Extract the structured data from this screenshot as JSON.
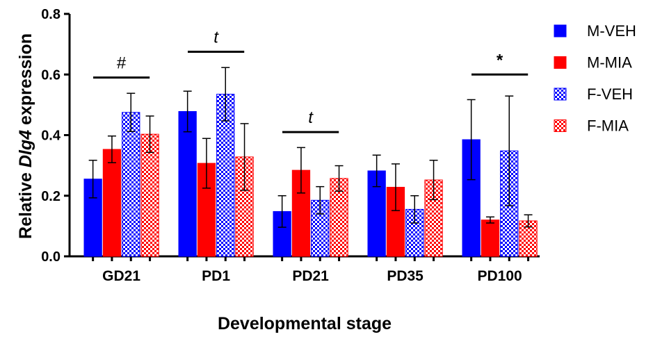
{
  "chart_data": {
    "type": "bar",
    "xlabel": "Developmental stage",
    "ylabel_prefix": "Relative ",
    "ylabel_gene": "Dlg4",
    "ylabel_suffix": " expression",
    "ylim": [
      0,
      0.8
    ],
    "yticks": [
      "0.0",
      "0.2",
      "0.4",
      "0.6",
      "0.8"
    ],
    "categories": [
      "GD21",
      "PD1",
      "PD21",
      "PD35",
      "PD100"
    ],
    "legend_position": "right",
    "series": [
      {
        "name": "M-VEH",
        "color": "#0000ff",
        "pattern": "solid",
        "values": [
          0.255,
          0.478,
          0.148,
          0.282,
          0.385
        ],
        "errors": [
          0.062,
          0.067,
          0.052,
          0.052,
          0.132
        ]
      },
      {
        "name": "M-MIA",
        "color": "#ff0000",
        "pattern": "solid",
        "values": [
          0.353,
          0.307,
          0.284,
          0.228,
          0.12
        ],
        "errors": [
          0.044,
          0.082,
          0.075,
          0.077,
          0.01
        ]
      },
      {
        "name": "F-VEH",
        "color": "#0000ff",
        "pattern": "checkered",
        "values": [
          0.475,
          0.535,
          0.185,
          0.155,
          0.348
        ],
        "errors": [
          0.063,
          0.088,
          0.045,
          0.045,
          0.181
        ]
      },
      {
        "name": "F-MIA",
        "color": "#ff0000",
        "pattern": "checkered",
        "values": [
          0.403,
          0.328,
          0.257,
          0.252,
          0.117
        ],
        "errors": [
          0.06,
          0.11,
          0.042,
          0.065,
          0.02
        ]
      }
    ],
    "annotations": [
      {
        "category": "GD21",
        "symbol": "#",
        "italic": false,
        "level": 0.59
      },
      {
        "category": "PD1",
        "symbol": "t",
        "italic": true,
        "level": 0.675
      },
      {
        "category": "PD21",
        "symbol": "t",
        "italic": true,
        "level": 0.41
      },
      {
        "category": "PD100",
        "symbol": "*",
        "italic": false,
        "level": 0.6
      }
    ]
  }
}
